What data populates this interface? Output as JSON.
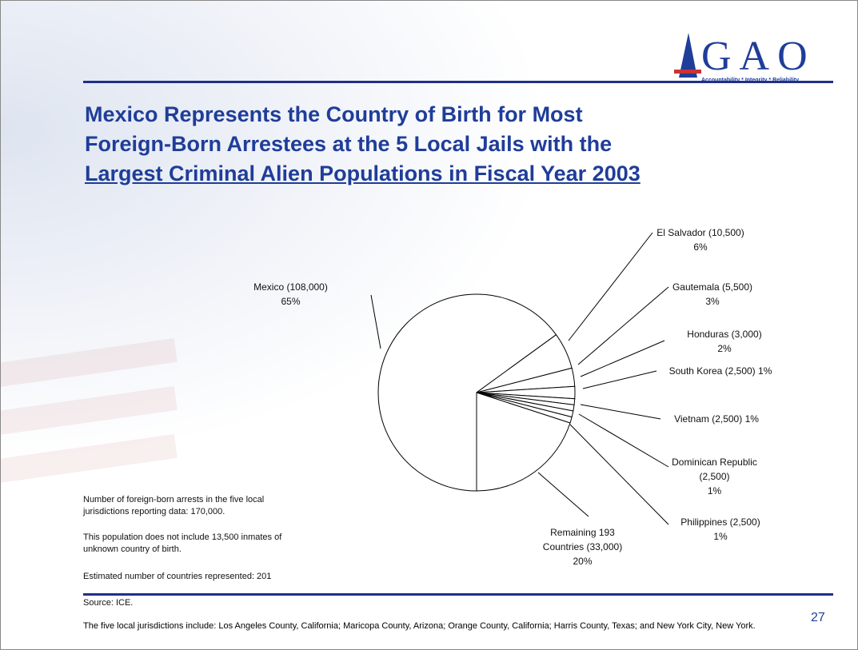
{
  "slide": {
    "logo": "GAO",
    "tagline": "Accountability * Integrity * Reliability",
    "title_lines": [
      "Mexico Represents the Country of Birth for Most",
      "Foreign-Born Arrestees at the 5 Local Jails with the",
      "Largest Criminal Alien Populations in Fiscal Year 2003"
    ],
    "notes": [
      "Number of foreign-born arrests in the five local jurisdictions reporting data: 170,000.",
      "This population does not include 13,500 inmates of unknown country of birth.",
      "Estimated number of countries represented: 201"
    ],
    "source": "Source: ICE.",
    "footnote": "The five local jurisdictions include: Los Angeles County, California; Maricopa County, Arizona; Orange County, California; Harris County, Texas; and New York City, New York.",
    "page_number": "27"
  },
  "chart_data": {
    "type": "pie",
    "color": "#ffffff",
    "categories": [
      "Mexico (108,000)",
      "El Salvador (10,500)",
      "Gautemala (5,500)",
      "Honduras (3,000)",
      "South Korea (2,500)",
      "Vietnam (2,500)",
      "Dominican Republic (2,500)",
      "Philippines (2,500)",
      "Remaining 193 Countries (33,000)"
    ],
    "values": [
      65,
      6,
      3,
      2,
      1,
      1,
      1,
      1,
      20
    ],
    "value_labels": [
      "65%",
      "6%",
      "3%",
      "2%",
      "1%",
      "1%",
      "1%",
      "1%",
      "20%"
    ]
  }
}
